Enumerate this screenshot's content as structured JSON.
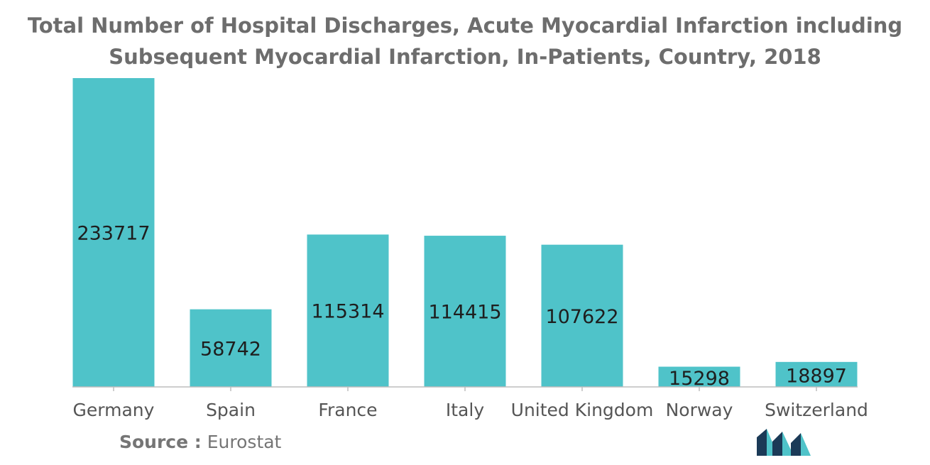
{
  "chart_data": {
    "type": "bar",
    "title_lines": [
      "Total Number of Hospital Discharges, Acute Myocardial Infarction including",
      "Subsequent Myocardial Infarction, In-Patients, Country, 2018"
    ],
    "categories": [
      "Germany",
      "Spain",
      "France",
      "Italy",
      "United Kingdom",
      "Norway",
      "Switzerland"
    ],
    "values": [
      233717,
      58742,
      115314,
      114415,
      107622,
      15298,
      18897
    ],
    "data_labels": [
      "233717",
      "58742",
      "115314",
      "114415",
      "107622",
      "15298",
      "18897"
    ],
    "xlabel": "",
    "ylabel": "",
    "ylim": [
      0,
      233717
    ],
    "grid": false,
    "legend": "none"
  },
  "source": {
    "label": "Source :",
    "text": "Eurostat"
  },
  "colors": {
    "bar": "#4fc3c9",
    "axis": "#bdbdbd",
    "data_label": "#1e1e1e",
    "category_label": "#555555",
    "title": "#6d6d6d",
    "logo_dark": "#1b3a57",
    "logo_light": "#4fc3c9"
  },
  "logo": {
    "icon": "mordor-intelligence-logo-icon"
  }
}
